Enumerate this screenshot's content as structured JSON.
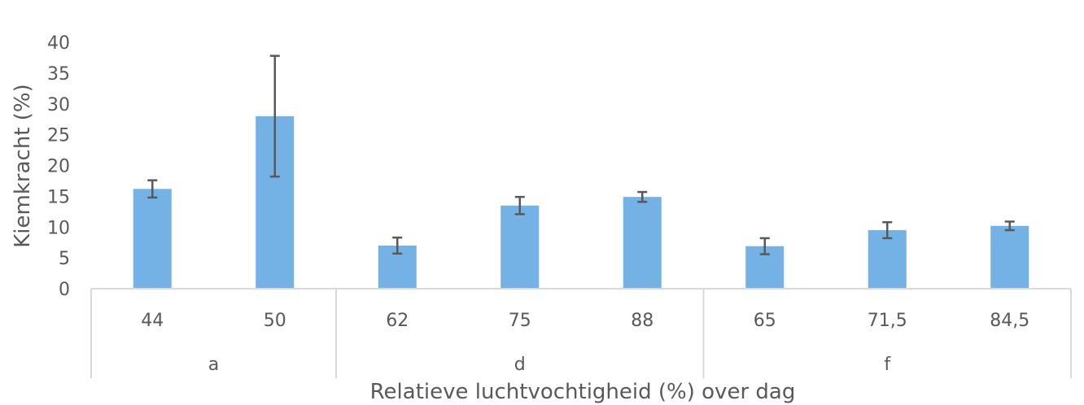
{
  "chart_data": {
    "type": "bar",
    "xlabel": "Relatieve luchtvochtigheid (%) over dag",
    "ylabel": "Kiemkracht (%)",
    "ylim": [
      0,
      40
    ],
    "yticks": [
      "0",
      "5",
      "10",
      "15",
      "20",
      "25",
      "30",
      "35",
      "40"
    ],
    "grid": false,
    "groups": [
      {
        "label": "a",
        "categories": [
          "44",
          "50"
        ]
      },
      {
        "label": "d",
        "categories": [
          "62",
          "75",
          "88"
        ]
      },
      {
        "label": "f",
        "categories": [
          "65",
          "71,5",
          "84,5"
        ]
      }
    ],
    "categories": [
      "44",
      "50",
      "62",
      "75",
      "88",
      "65",
      "71,5",
      "84,5"
    ],
    "values": [
      16.2,
      28.0,
      7.0,
      13.5,
      14.9,
      6.9,
      9.5,
      10.2
    ],
    "error": [
      1.4,
      9.8,
      1.3,
      1.4,
      0.8,
      1.3,
      1.3,
      0.7
    ],
    "colors": {
      "bar": "#74b2e6",
      "error": "#595959",
      "axis": "#d9d9d9",
      "text": "#595959"
    }
  }
}
